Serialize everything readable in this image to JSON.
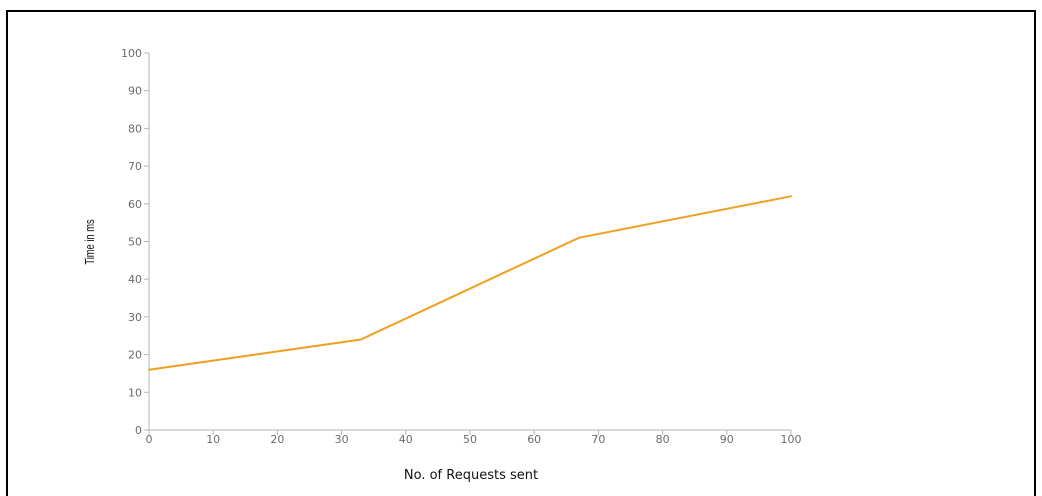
{
  "chart_data": {
    "type": "line",
    "title": "",
    "xlabel": "No. of Requests sent",
    "ylabel": "Time in ms",
    "xlim": [
      0,
      100
    ],
    "ylim": [
      0,
      100
    ],
    "x_ticks": [
      "0",
      "10",
      "20",
      "30",
      "40",
      "50",
      "60",
      "70",
      "80",
      "90",
      "100"
    ],
    "y_ticks": [
      "0",
      "10",
      "20",
      "30",
      "40",
      "50",
      "60",
      "70",
      "80",
      "90",
      "100"
    ],
    "grid": false,
    "legend": "none",
    "series": [
      {
        "color": "#f0a020",
        "points": [
          {
            "x": 0,
            "y": 16
          },
          {
            "x": 33,
            "y": 24
          },
          {
            "x": 67,
            "y": 51
          },
          {
            "x": 100,
            "y": 62
          }
        ]
      }
    ]
  }
}
